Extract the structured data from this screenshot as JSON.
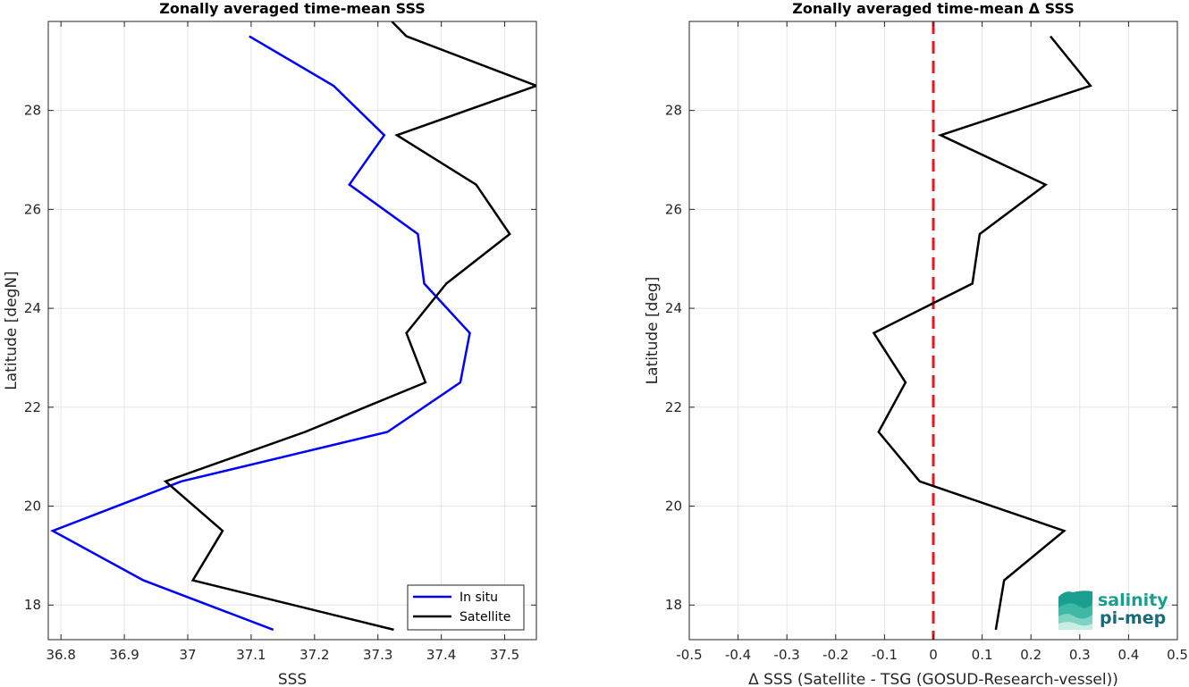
{
  "chart_data": [
    {
      "type": "line",
      "title": "Zonally averaged time-mean SSS",
      "xlabel": "SSS",
      "ylabel": "Latitude [degN]",
      "xlim": [
        36.78,
        37.55
      ],
      "ylim": [
        17.3,
        29.8
      ],
      "xticks": [
        36.8,
        36.9,
        37,
        37.1,
        37.2,
        37.3,
        37.4,
        37.5
      ],
      "xtick_labels": [
        "36.8",
        "36.9",
        "37",
        "37.1",
        "37.2",
        "37.3",
        "37.4",
        "37.5"
      ],
      "yticks": [
        18,
        20,
        22,
        24,
        26,
        28
      ],
      "ytick_labels": [
        "18",
        "20",
        "22",
        "24",
        "26",
        "28"
      ],
      "grid": true,
      "legend": "bottom-right",
      "series": [
        {
          "name": "In situ",
          "color": "#0000ff",
          "x": [
            37.135,
            36.93,
            36.787,
            36.99,
            37.315,
            37.43,
            37.445,
            37.373,
            37.363,
            37.255,
            37.31,
            37.23,
            37.097
          ],
          "y": [
            17.5,
            18.5,
            19.5,
            20.5,
            21.5,
            22.5,
            23.5,
            24.5,
            25.5,
            26.5,
            27.5,
            28.5,
            29.5
          ]
        },
        {
          "name": "Satellite",
          "color": "#000000",
          "x": [
            37.325,
            37.008,
            37.055,
            36.965,
            37.185,
            37.375,
            37.345,
            37.408,
            37.508,
            37.455,
            37.33,
            37.55,
            37.345,
            37.322
          ],
          "y": [
            17.5,
            18.5,
            19.5,
            20.5,
            21.5,
            22.5,
            23.5,
            24.5,
            25.5,
            26.5,
            27.5,
            28.5,
            29.5,
            29.8
          ]
        }
      ]
    },
    {
      "type": "line",
      "title": "Zonally averaged time-mean Δ SSS",
      "xlabel": "Δ SSS (Satellite - TSG (GOSUD-Research-vessel))",
      "ylabel": "Latitude [deg]",
      "xlim": [
        -0.5,
        0.5
      ],
      "ylim": [
        17.3,
        29.8
      ],
      "xticks": [
        -0.5,
        -0.4,
        -0.3,
        -0.2,
        -0.1,
        0,
        0.1,
        0.2,
        0.3,
        0.4,
        0.5
      ],
      "xtick_labels": [
        "-0.5",
        "-0.4",
        "-0.3",
        "-0.2",
        "-0.1",
        "0",
        "0.1",
        "0.2",
        "0.3",
        "0.4",
        "0.5"
      ],
      "yticks": [
        18,
        20,
        22,
        24,
        26,
        28
      ],
      "ytick_labels": [
        "18",
        "20",
        "22",
        "24",
        "26",
        "28"
      ],
      "grid": true,
      "zero_line_color": "#e8171c",
      "series": [
        {
          "color": "#000000",
          "x": [
            0.128,
            0.145,
            0.268,
            -0.028,
            -0.112,
            -0.057,
            -0.122,
            0.08,
            0.095,
            0.23,
            0.015,
            0.322,
            0.24
          ],
          "y": [
            17.5,
            18.5,
            19.5,
            20.5,
            21.5,
            22.5,
            23.5,
            24.5,
            25.5,
            26.5,
            27.5,
            28.5,
            29.5
          ]
        }
      ]
    }
  ],
  "logo": {
    "line1": "salinity",
    "line2": "pi-mep",
    "colors": [
      "#1a9e8f",
      "#1a6a78",
      "#7fd3c0"
    ]
  }
}
